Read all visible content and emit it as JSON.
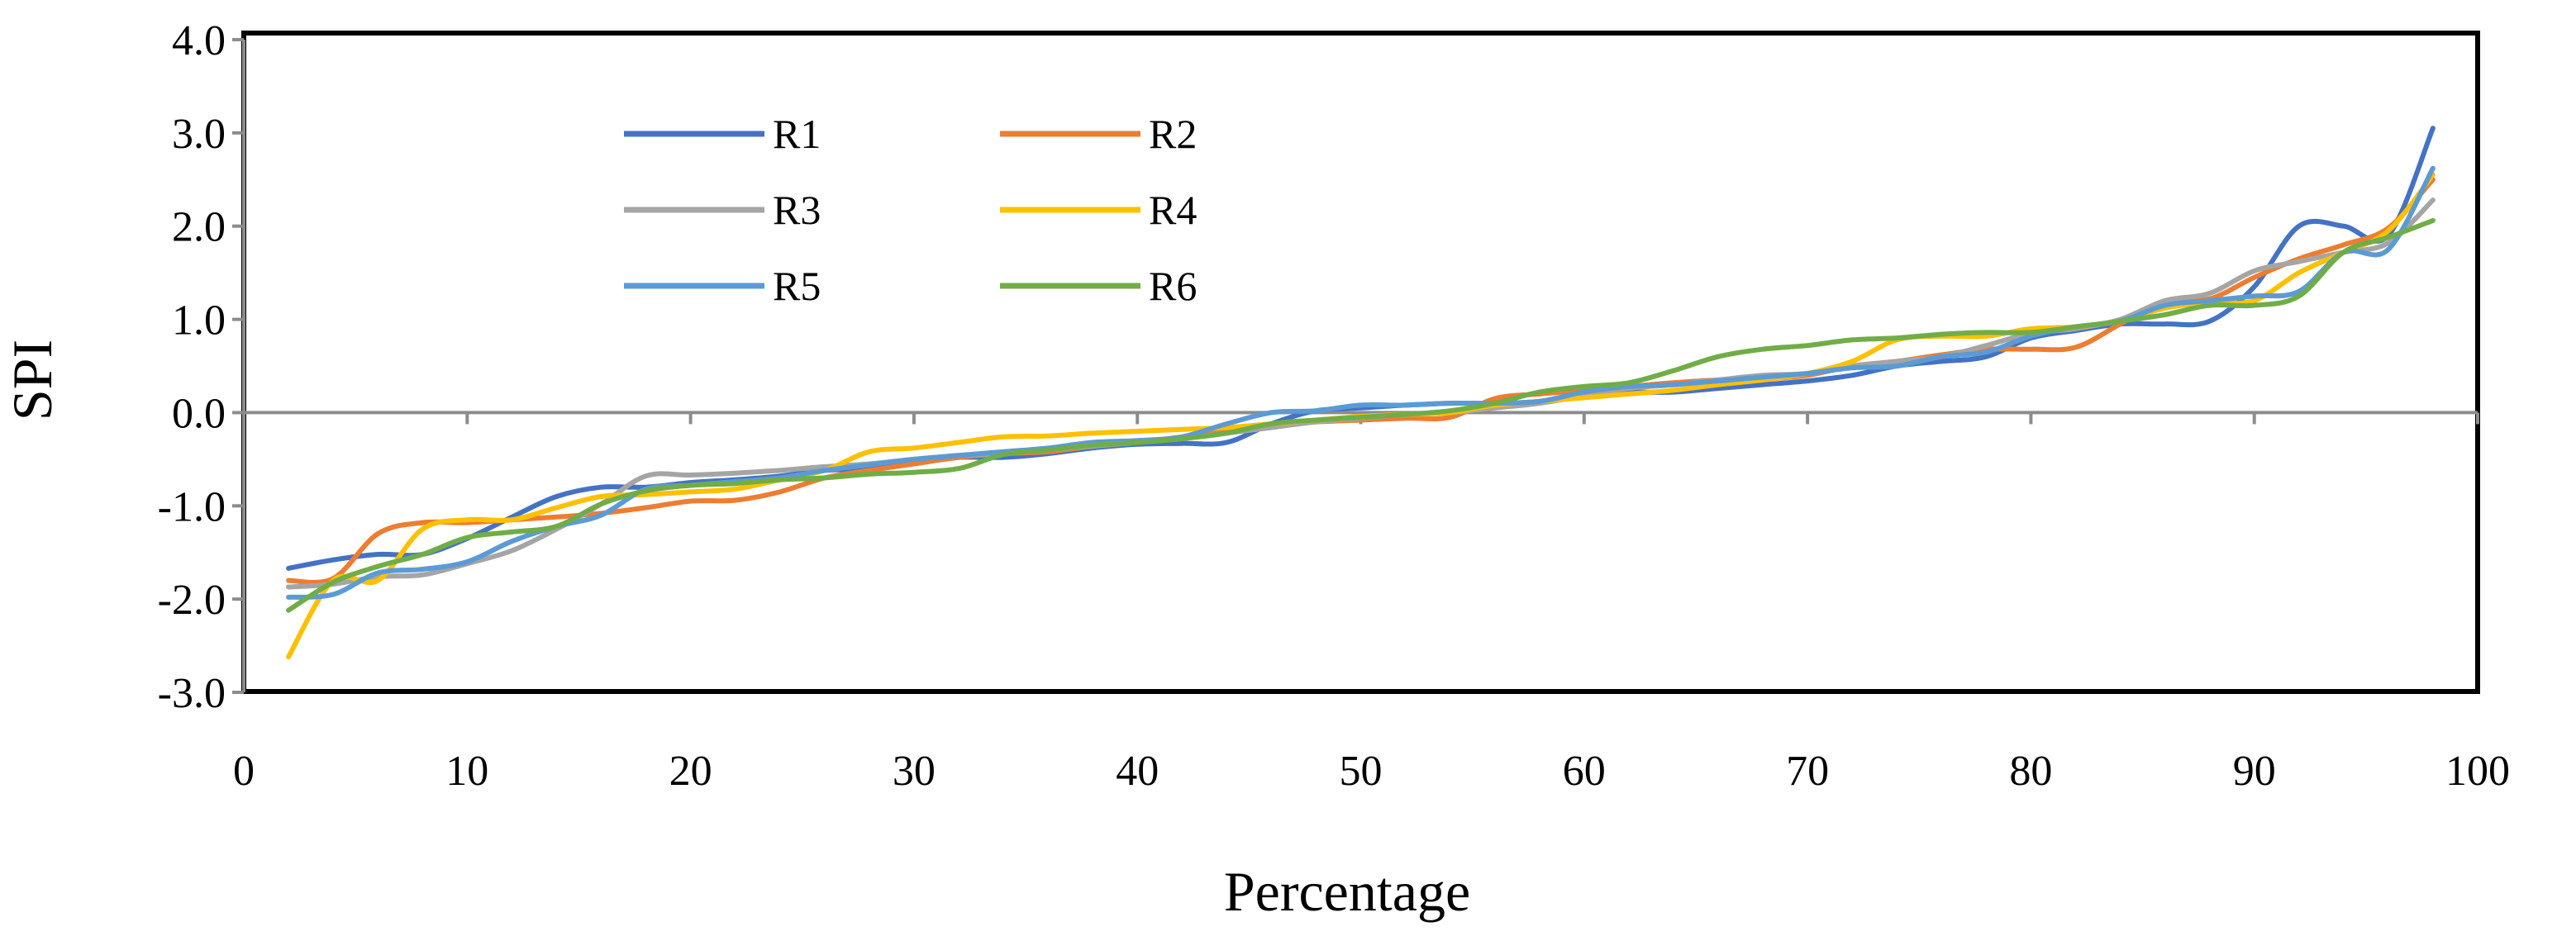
{
  "chart_data": {
    "type": "line",
    "title": "",
    "xlabel": "Percentage",
    "ylabel": "SPI",
    "xlim": [
      0,
      100
    ],
    "ylim": [
      -3.0,
      4.0
    ],
    "xticks": [
      0,
      10,
      20,
      30,
      40,
      50,
      60,
      70,
      80,
      90,
      100
    ],
    "yticks": [
      -3.0,
      -2.0,
      -1.0,
      0.0,
      1.0,
      2.0,
      3.0,
      4.0
    ],
    "xtick_labels": [
      "0",
      "10",
      "20",
      "30",
      "40",
      "50",
      "60",
      "70",
      "80",
      "90",
      "100"
    ],
    "ytick_labels": [
      "-3.0",
      "-2.0",
      "-1.0",
      "0.0",
      "1.0",
      "2.0",
      "3.0",
      "4.0"
    ],
    "grid": false,
    "zero_line": true,
    "legend_position": "upper-left inside plot, two columns",
    "series": [
      {
        "name": "R1",
        "color": "#4472C4",
        "x": [
          2,
          4,
          6,
          8,
          10,
          12,
          14,
          16,
          18,
          20,
          22,
          24,
          26,
          28,
          30,
          32,
          34,
          36,
          38,
          40,
          42,
          44,
          46,
          48,
          50,
          52,
          54,
          56,
          58,
          60,
          62,
          64,
          66,
          68,
          70,
          72,
          74,
          76,
          78,
          80,
          82,
          84,
          86,
          88,
          90,
          92,
          94,
          96,
          98
        ],
        "y": [
          -1.67,
          -1.58,
          -1.52,
          -1.52,
          -1.35,
          -1.12,
          -0.9,
          -0.8,
          -0.8,
          -0.75,
          -0.72,
          -0.68,
          -0.62,
          -0.6,
          -0.52,
          -0.48,
          -0.48,
          -0.44,
          -0.38,
          -0.34,
          -0.33,
          -0.32,
          -0.12,
          0.02,
          0.05,
          0.08,
          0.1,
          0.1,
          0.12,
          0.2,
          0.22,
          0.22,
          0.26,
          0.3,
          0.34,
          0.4,
          0.5,
          0.55,
          0.6,
          0.8,
          0.88,
          0.95,
          0.95,
          0.98,
          1.35,
          2.0,
          2.0,
          1.9,
          3.05
        ]
      },
      {
        "name": "R2",
        "color": "#ED7D31",
        "x": [
          2,
          4,
          6,
          8,
          10,
          12,
          14,
          16,
          18,
          20,
          22,
          24,
          26,
          28,
          30,
          32,
          34,
          36,
          38,
          40,
          42,
          44,
          46,
          48,
          50,
          52,
          54,
          56,
          58,
          60,
          62,
          64,
          66,
          68,
          70,
          72,
          74,
          76,
          78,
          80,
          82,
          84,
          86,
          88,
          90,
          92,
          94,
          96,
          98
        ],
        "y": [
          -1.8,
          -1.78,
          -1.3,
          -1.18,
          -1.18,
          -1.15,
          -1.12,
          -1.08,
          -1.02,
          -0.95,
          -0.94,
          -0.85,
          -0.7,
          -0.62,
          -0.55,
          -0.48,
          -0.44,
          -0.42,
          -0.36,
          -0.32,
          -0.26,
          -0.2,
          -0.14,
          -0.1,
          -0.08,
          -0.06,
          -0.05,
          0.15,
          0.2,
          0.24,
          0.28,
          0.32,
          0.35,
          0.36,
          0.4,
          0.5,
          0.55,
          0.62,
          0.68,
          0.68,
          0.7,
          0.95,
          1.2,
          1.22,
          1.45,
          1.65,
          1.8,
          1.98,
          2.5
        ]
      },
      {
        "name": "R3",
        "color": "#A5A5A5",
        "x": [
          2,
          4,
          6,
          8,
          10,
          12,
          14,
          16,
          18,
          20,
          22,
          24,
          26,
          28,
          30,
          32,
          34,
          36,
          38,
          40,
          42,
          44,
          46,
          48,
          50,
          52,
          54,
          56,
          58,
          60,
          62,
          64,
          66,
          68,
          70,
          72,
          74,
          76,
          78,
          80,
          82,
          84,
          86,
          88,
          90,
          92,
          94,
          96,
          98
        ],
        "y": [
          -1.87,
          -1.84,
          -1.76,
          -1.74,
          -1.62,
          -1.48,
          -1.25,
          -0.98,
          -0.68,
          -0.67,
          -0.65,
          -0.62,
          -0.58,
          -0.55,
          -0.5,
          -0.46,
          -0.44,
          -0.4,
          -0.36,
          -0.32,
          -0.28,
          -0.22,
          -0.16,
          -0.1,
          -0.06,
          -0.02,
          0.0,
          0.05,
          0.1,
          0.18,
          0.26,
          0.3,
          0.35,
          0.4,
          0.42,
          0.5,
          0.55,
          0.6,
          0.72,
          0.85,
          0.9,
          1.0,
          1.2,
          1.28,
          1.52,
          1.62,
          1.72,
          1.82,
          2.28
        ]
      },
      {
        "name": "R4",
        "color": "#FFC000",
        "x": [
          2,
          4,
          6,
          8,
          10,
          12,
          14,
          16,
          18,
          20,
          22,
          24,
          26,
          28,
          30,
          32,
          34,
          36,
          38,
          40,
          42,
          44,
          46,
          48,
          50,
          52,
          54,
          56,
          58,
          60,
          62,
          64,
          66,
          68,
          70,
          72,
          74,
          76,
          78,
          80,
          82,
          84,
          86,
          88,
          90,
          92,
          94,
          96,
          98
        ],
        "y": [
          -2.62,
          -1.8,
          -1.8,
          -1.25,
          -1.15,
          -1.15,
          -1.02,
          -0.9,
          -0.88,
          -0.85,
          -0.82,
          -0.72,
          -0.62,
          -0.42,
          -0.38,
          -0.32,
          -0.26,
          -0.25,
          -0.22,
          -0.2,
          -0.18,
          -0.16,
          -0.12,
          -0.08,
          -0.04,
          -0.02,
          0.0,
          0.08,
          0.12,
          0.16,
          0.2,
          0.24,
          0.3,
          0.35,
          0.42,
          0.55,
          0.78,
          0.82,
          0.82,
          0.9,
          0.92,
          0.98,
          1.12,
          1.18,
          1.2,
          1.5,
          1.72,
          1.95,
          2.55
        ]
      },
      {
        "name": "R5",
        "color": "#5B9BD5",
        "x": [
          2,
          4,
          6,
          8,
          10,
          12,
          14,
          16,
          18,
          20,
          22,
          24,
          26,
          28,
          30,
          32,
          34,
          36,
          38,
          40,
          42,
          44,
          46,
          48,
          50,
          52,
          54,
          56,
          58,
          60,
          62,
          64,
          66,
          68,
          70,
          72,
          74,
          76,
          78,
          80,
          82,
          84,
          86,
          88,
          90,
          92,
          94,
          96,
          98
        ],
        "y": [
          -1.98,
          -1.95,
          -1.72,
          -1.68,
          -1.6,
          -1.38,
          -1.22,
          -1.1,
          -0.82,
          -0.78,
          -0.74,
          -0.7,
          -0.62,
          -0.56,
          -0.5,
          -0.46,
          -0.42,
          -0.38,
          -0.32,
          -0.3,
          -0.26,
          -0.12,
          0.0,
          0.02,
          0.08,
          0.08,
          0.1,
          0.1,
          0.12,
          0.22,
          0.28,
          0.3,
          0.34,
          0.38,
          0.42,
          0.48,
          0.5,
          0.6,
          0.65,
          0.82,
          0.92,
          0.98,
          1.15,
          1.2,
          1.25,
          1.3,
          1.72,
          1.75,
          2.62
        ]
      },
      {
        "name": "R6",
        "color": "#70AD47",
        "x": [
          2,
          4,
          6,
          8,
          10,
          12,
          14,
          16,
          18,
          20,
          22,
          24,
          26,
          28,
          30,
          32,
          34,
          36,
          38,
          40,
          42,
          44,
          46,
          48,
          50,
          52,
          54,
          56,
          58,
          60,
          62,
          64,
          66,
          68,
          70,
          72,
          74,
          76,
          78,
          80,
          82,
          84,
          86,
          88,
          90,
          92,
          94,
          96,
          98
        ],
        "y": [
          -2.12,
          -1.82,
          -1.65,
          -1.52,
          -1.34,
          -1.28,
          -1.22,
          -0.98,
          -0.84,
          -0.78,
          -0.76,
          -0.72,
          -0.7,
          -0.66,
          -0.64,
          -0.6,
          -0.45,
          -0.4,
          -0.35,
          -0.32,
          -0.28,
          -0.22,
          -0.12,
          -0.08,
          -0.05,
          -0.02,
          0.02,
          0.1,
          0.22,
          0.28,
          0.32,
          0.45,
          0.6,
          0.68,
          0.72,
          0.78,
          0.8,
          0.84,
          0.86,
          0.86,
          0.92,
          0.98,
          1.05,
          1.15,
          1.15,
          1.25,
          1.72,
          1.88,
          2.06
        ]
      }
    ]
  }
}
